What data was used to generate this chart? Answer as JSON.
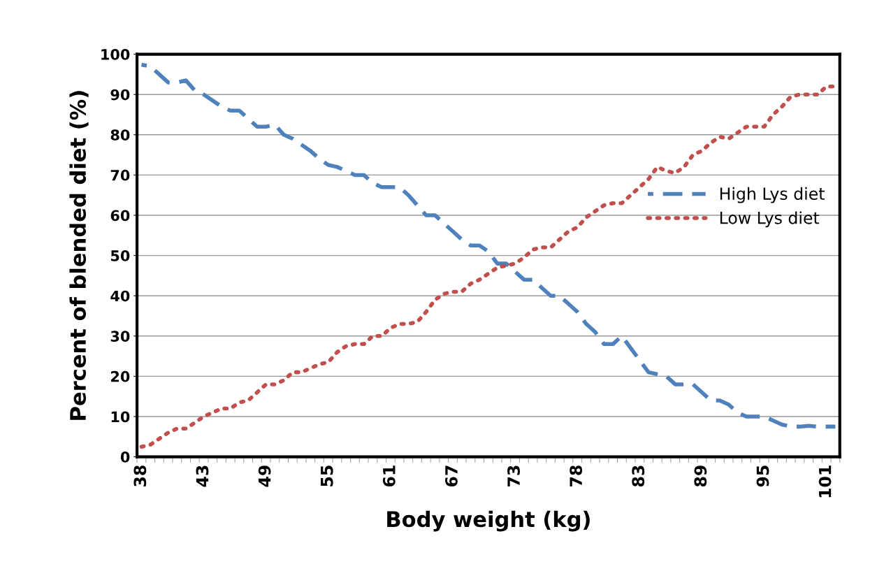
{
  "chart_data": {
    "type": "line",
    "xlabel": "Body weight (kg)",
    "ylabel": "Percent of blended diet (%)",
    "categories": [
      "38",
      null,
      null,
      null,
      null,
      null,
      null,
      "43",
      null,
      null,
      null,
      null,
      null,
      null,
      "49",
      null,
      null,
      null,
      null,
      null,
      null,
      "55",
      null,
      null,
      null,
      null,
      null,
      null,
      "61",
      null,
      null,
      null,
      null,
      null,
      null,
      "67",
      null,
      null,
      null,
      null,
      null,
      null,
      "73",
      null,
      null,
      null,
      null,
      null,
      null,
      "78",
      null,
      null,
      null,
      null,
      null,
      null,
      "83",
      null,
      null,
      null,
      null,
      null,
      null,
      "89",
      null,
      null,
      null,
      null,
      null,
      null,
      "95",
      null,
      null,
      null,
      null,
      null,
      null,
      "101",
      null
    ],
    "series": [
      {
        "name": "High Lys diet",
        "color": "#4f81bd",
        "line_style": "dashed",
        "values": [
          97.4,
          97,
          95,
          93,
          93,
          93.5,
          91,
          90,
          88.5,
          87,
          86,
          86,
          84,
          82,
          82,
          82.5,
          80,
          79,
          77.5,
          76,
          74,
          72.5,
          72,
          71,
          70,
          70,
          68,
          67,
          67,
          67,
          65,
          62.5,
          60,
          60,
          58,
          56,
          54,
          52.5,
          52.5,
          51,
          48,
          48,
          46,
          44,
          44,
          42,
          40,
          40,
          38,
          36,
          33,
          31,
          28,
          28,
          30,
          27,
          24,
          21,
          20.5,
          20,
          18,
          18,
          18,
          16,
          14,
          14,
          13,
          11,
          10,
          10,
          10,
          9,
          8,
          7.5,
          7.5,
          7.7,
          7.5,
          7.5,
          7.5
        ]
      },
      {
        "name": "Low Lys diet",
        "color": "#c0504d",
        "line_style": "dotted",
        "values": [
          2.5,
          3,
          4.5,
          6,
          7,
          7,
          8.5,
          10,
          11,
          12,
          12,
          13.5,
          14,
          16,
          18,
          18,
          19,
          21,
          21,
          22,
          23,
          23.5,
          26,
          27.5,
          28,
          28,
          30,
          30,
          32,
          33,
          33,
          33.5,
          36,
          39,
          40.5,
          41,
          41,
          43,
          44,
          45.5,
          47,
          47.5,
          48,
          49.5,
          51.5,
          52,
          52,
          54,
          56,
          57,
          59.5,
          61,
          62.5,
          63,
          63,
          65,
          67,
          69,
          72,
          71,
          70.5,
          72,
          75,
          76,
          78,
          79.5,
          79,
          80.5,
          82,
          82,
          82,
          85,
          87,
          89.5,
          90,
          90,
          90,
          92,
          92
        ]
      }
    ],
    "ylim": [
      0,
      100
    ],
    "yticks": [
      0,
      10,
      20,
      30,
      40,
      50,
      60,
      70,
      80,
      90,
      100
    ],
    "grid": "y",
    "legend": "right"
  }
}
